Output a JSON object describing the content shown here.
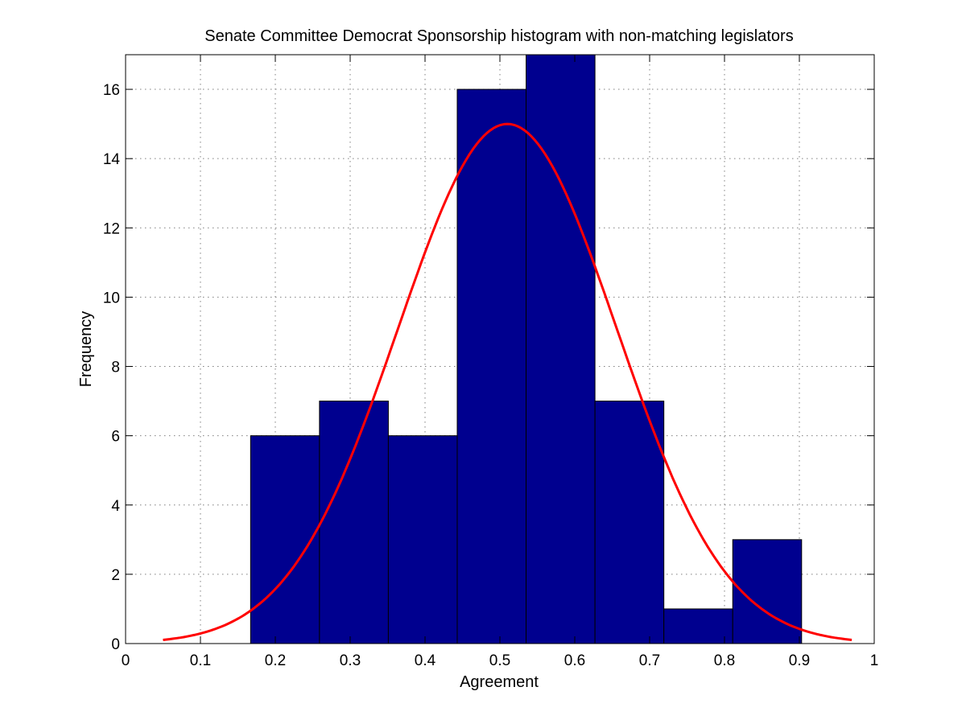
{
  "chart_data": {
    "type": "bar",
    "title": "Senate Committee Democrat Sponsorship histogram with non-matching legislators",
    "xlabel": "Agreement",
    "ylabel": "Frequency",
    "xlim": [
      0,
      1
    ],
    "ylim": [
      0,
      17
    ],
    "grid": true,
    "legend": "none",
    "x_ticks": [
      0,
      0.1,
      0.2,
      0.3,
      0.4,
      0.5,
      0.6,
      0.7,
      0.8,
      0.9,
      1
    ],
    "x_tick_labels": [
      "0",
      "0.1",
      "0.2",
      "0.3",
      "0.4",
      "0.5",
      "0.6",
      "0.7",
      "0.8",
      "0.9",
      "1"
    ],
    "y_ticks": [
      0,
      2,
      4,
      6,
      8,
      10,
      12,
      14,
      16
    ],
    "y_tick_labels": [
      "0",
      "2",
      "4",
      "6",
      "8",
      "10",
      "12",
      "14",
      "16"
    ],
    "bins": [
      {
        "x0": 0.167,
        "x1": 0.259,
        "count": 6
      },
      {
        "x0": 0.259,
        "x1": 0.351,
        "count": 7
      },
      {
        "x0": 0.351,
        "x1": 0.443,
        "count": 6
      },
      {
        "x0": 0.443,
        "x1": 0.535,
        "count": 16
      },
      {
        "x0": 0.535,
        "x1": 0.627,
        "count": 17
      },
      {
        "x0": 0.627,
        "x1": 0.719,
        "count": 7
      },
      {
        "x0": 0.719,
        "x1": 0.811,
        "count": 1
      },
      {
        "x0": 0.811,
        "x1": 0.903,
        "count": 3
      }
    ],
    "fit_curve": {
      "type": "normal",
      "x_range": [
        0.05,
        0.97
      ],
      "peak": 15.0,
      "mean": 0.51,
      "sd": 0.146
    },
    "colors": {
      "bar_fill": "#00008f",
      "bar_edge": "#000000",
      "curve": "#ff0000",
      "grid": "#7f7f7f"
    }
  }
}
